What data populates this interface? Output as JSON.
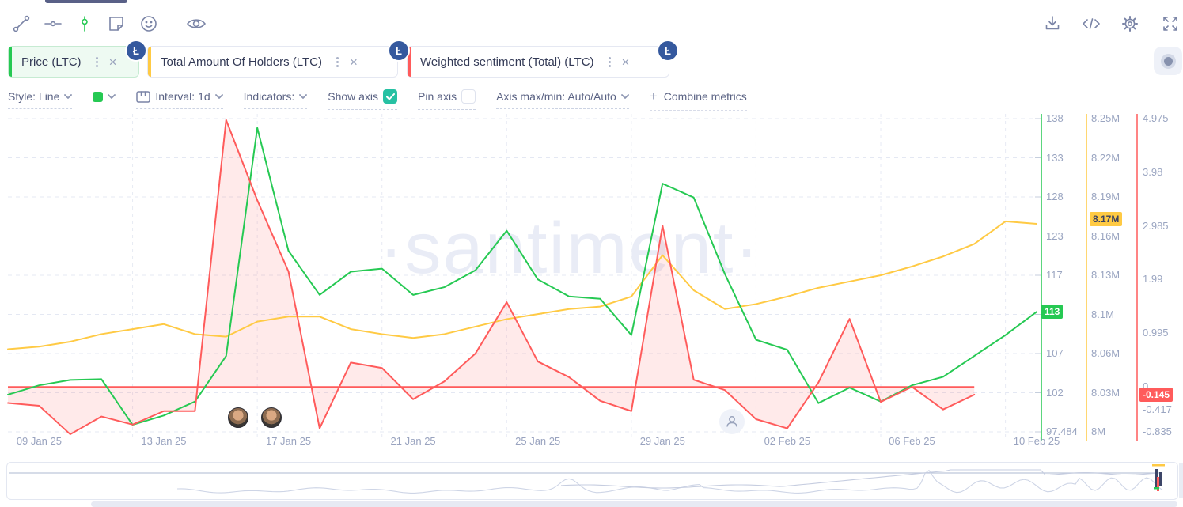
{
  "toolbar": {
    "left_icons": [
      "trend-line",
      "horizontal-line",
      "candlestick",
      "note",
      "emoji",
      "eye"
    ],
    "right_icons": [
      "download",
      "embed-code",
      "settings",
      "fullscreen"
    ]
  },
  "tabs": [
    {
      "label": "Price (LTC)",
      "color": "#26c953",
      "badge": "Ł"
    },
    {
      "label": "Total Amount Of Holders (LTC)",
      "color": "#ffca44",
      "badge": "Ł"
    },
    {
      "label": "Weighted sentiment (Total) (LTC)",
      "color": "#ff5b5b",
      "badge": "Ł"
    }
  ],
  "controls": {
    "style": "Style: Line",
    "style_color": "#26c953",
    "interval": "Interval: 1d",
    "indicators": "Indicators:",
    "show_axis": "Show axis",
    "show_axis_checked": true,
    "pin_axis": "Pin axis",
    "pin_axis_checked": false,
    "axis_maxmin": "Axis max/min: Auto/Auto",
    "combine_plus": "+",
    "combine_metrics": "Combine metrics"
  },
  "watermark": "·santiment·",
  "chart_data": {
    "type": "line",
    "x": [
      "08 Jan 25",
      "09 Jan 25",
      "10 Jan 25",
      "11 Jan 25",
      "12 Jan 25",
      "13 Jan 25",
      "14 Jan 25",
      "15 Jan 25",
      "16 Jan 25",
      "17 Jan 25",
      "18 Jan 25",
      "19 Jan 25",
      "20 Jan 25",
      "21 Jan 25",
      "22 Jan 25",
      "23 Jan 25",
      "24 Jan 25",
      "25 Jan 25",
      "26 Jan 25",
      "27 Jan 25",
      "28 Jan 25",
      "29 Jan 25",
      "30 Jan 25",
      "31 Jan 25",
      "01 Feb 25",
      "02 Feb 25",
      "03 Feb 25",
      "04 Feb 25",
      "05 Feb 25",
      "06 Feb 25",
      "07 Feb 25",
      "08 Feb 25",
      "09 Feb 25",
      "10 Feb 25"
    ],
    "x_axis_labels": [
      "09 Jan 25",
      "13 Jan 25",
      "17 Jan 25",
      "21 Jan 25",
      "25 Jan 25",
      "29 Jan 25",
      "02 Feb 25",
      "06 Feb 25",
      "10 Feb 25"
    ],
    "series": [
      {
        "name": "Price (LTC)",
        "color": "#26c953",
        "axis": "price",
        "values": [
          102.3,
          103.5,
          104.2,
          104.3,
          98.4,
          99.6,
          101.4,
          107.3,
          136.8,
          120.9,
          115.2,
          118.2,
          118.6,
          115.2,
          116.2,
          118.4,
          123.5,
          117.2,
          115.0,
          114.7,
          110.0,
          129.6,
          127.8,
          117.9,
          109.4,
          108.1,
          101.2,
          103.2,
          101.4,
          103.5,
          104.6,
          107.3,
          110.0,
          113.0
        ]
      },
      {
        "name": "Total Amount Of Holders (LTC)",
        "color": "#ffca44",
        "axis": "holders",
        "values": [
          8.066,
          8.068,
          8.072,
          8.078,
          8.082,
          8.086,
          8.078,
          8.076,
          8.088,
          8.092,
          8.092,
          8.082,
          8.078,
          8.075,
          8.078,
          8.084,
          8.09,
          8.094,
          8.098,
          8.1,
          8.108,
          8.141,
          8.113,
          8.098,
          8.102,
          8.108,
          8.115,
          8.12,
          8.125,
          8.132,
          8.14,
          8.15,
          8.168,
          8.166
        ]
      },
      {
        "name": "Weighted sentiment (Total) (LTC)",
        "color": "#ff5b5b",
        "axis": "sentiment",
        "values": [
          -0.3,
          -0.35,
          -0.88,
          -0.55,
          -0.7,
          -0.45,
          -0.45,
          4.95,
          3.46,
          2.14,
          -0.77,
          0.45,
          0.35,
          -0.23,
          0.1,
          0.62,
          1.57,
          0.47,
          0.18,
          -0.26,
          -0.45,
          2.99,
          0.13,
          -0.06,
          -0.6,
          -0.77,
          0.08,
          1.26,
          -0.28,
          0.0,
          -0.42,
          -0.145,
          null,
          null
        ]
      }
    ],
    "axes": {
      "price": {
        "min": 97.484,
        "max": 138,
        "current": "113",
        "current_value": 113,
        "ticks": [
          "138",
          "133",
          "128",
          "123",
          "117",
          "112",
          "107",
          "102",
          "97.484"
        ]
      },
      "holders": {
        "min": 8.0,
        "max": 8.25,
        "current": "8.17M",
        "current_value": 8.17,
        "ticks": [
          "8.25M",
          "8.22M",
          "8.19M",
          "8.16M",
          "8.13M",
          "8.1M",
          "8.06M",
          "8.03M",
          "8M"
        ]
      },
      "sentiment": {
        "min": -0.835,
        "max": 4.975,
        "current": "-0.145",
        "current_value": -0.145,
        "zero_baseline": 0,
        "ticks": [
          {
            "label": "4.975",
            "value": 4.975
          },
          {
            "label": "3.98",
            "value": 3.98
          },
          {
            "label": "2.985",
            "value": 2.985
          },
          {
            "label": "1.99",
            "value": 1.99
          },
          {
            "label": "0.995",
            "value": 0.995
          },
          {
            "label": "0",
            "value": 0
          },
          {
            "label": "-0.417",
            "value": -0.417
          },
          {
            "label": "-0.835",
            "value": -0.835
          }
        ]
      }
    },
    "grid": true,
    "legend_position": "tabs-top"
  },
  "markers": {
    "avatar_count": 2,
    "person_marker": true
  }
}
